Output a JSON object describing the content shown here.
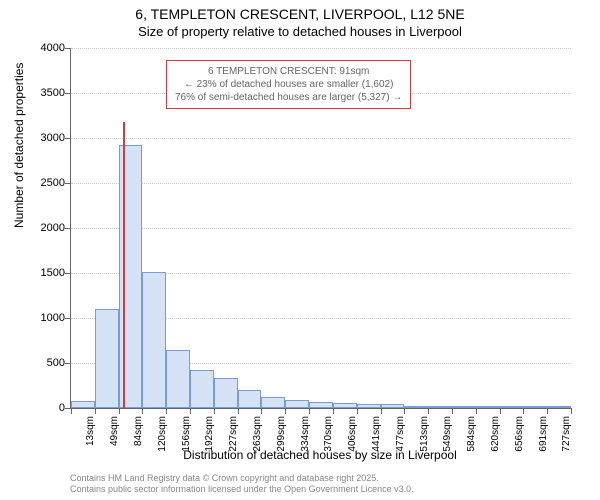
{
  "chart": {
    "type": "histogram",
    "title_main": "6, TEMPLETON CRESCENT, LIVERPOOL, L12 5NE",
    "title_sub": "Size of property relative to detached houses in Liverpool",
    "y_axis_title": "Number of detached properties",
    "x_axis_title": "Distribution of detached houses by size in Liverpool",
    "ylim": [
      0,
      4000
    ],
    "ytick_step": 500,
    "yticks": [
      0,
      500,
      1000,
      1500,
      2000,
      2500,
      3000,
      3500,
      4000
    ],
    "x_categories": [
      "13sqm",
      "49sqm",
      "84sqm",
      "120sqm",
      "156sqm",
      "192sqm",
      "227sqm",
      "263sqm",
      "299sqm",
      "334sqm",
      "370sqm",
      "406sqm",
      "441sqm",
      "477sqm",
      "513sqm",
      "549sqm",
      "584sqm",
      "620sqm",
      "656sqm",
      "691sqm",
      "727sqm"
    ],
    "bar_values": [
      75,
      1100,
      2920,
      1510,
      640,
      420,
      330,
      200,
      120,
      90,
      70,
      55,
      40,
      45,
      15,
      10,
      8,
      6,
      5,
      4,
      3
    ],
    "bar_fill": "#d6e2f5",
    "bar_border": "#7a9cd4",
    "grid_color": "#cccccc",
    "axis_color": "#666666",
    "background_color": "#ffffff",
    "title_fontsize": 14,
    "sub_fontsize": 13,
    "axis_title_fontsize": 12,
    "tick_fontsize": 11,
    "marker": {
      "color": "#d43b3b",
      "position_index": 2,
      "fraction_into_bin": 0.2,
      "height_value": 3180
    },
    "annotation": {
      "line1": "6 TEMPLETON CRESCENT: 91sqm",
      "line2": "← 23% of detached houses are smaller (1,602)",
      "line3": "76% of semi-detached houses are larger (5,327) →",
      "border_color": "#d43b3b",
      "text_color": "#666666",
      "fontsize": 10
    },
    "footer": {
      "line1": "Contains HM Land Registry data © Crown copyright and database right 2025.",
      "line2": "Contains public sector information licensed under the Open Government Licence v3.0.",
      "color": "#888888",
      "fontsize": 9
    }
  }
}
